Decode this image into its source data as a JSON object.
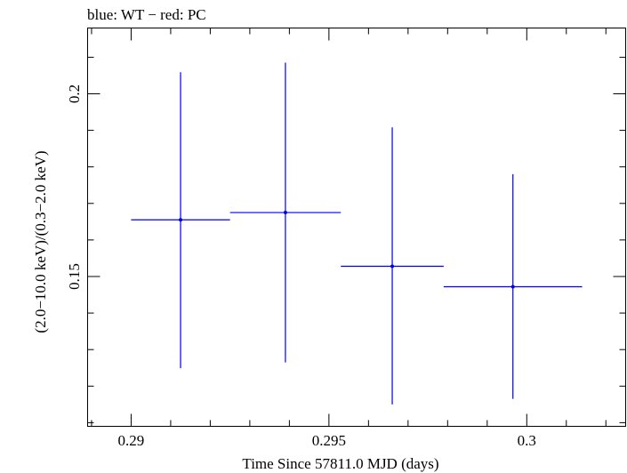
{
  "chart_data": {
    "type": "scatter",
    "title": "blue: WT − red: PC",
    "xlabel": "Time Since 57811.0 MJD (days)",
    "ylabel": "(2.0−10.0 keV)/(0.3−2.0 keV)",
    "xlim": [
      0.2889,
      0.3025
    ],
    "ylim": [
      0.109,
      0.218
    ],
    "x_ticks": [
      {
        "value": 0.29,
        "label": "0.29"
      },
      {
        "value": 0.295,
        "label": "0.295"
      },
      {
        "value": 0.3,
        "label": "0.3"
      }
    ],
    "y_ticks": [
      {
        "value": 0.15,
        "label": "0.15"
      },
      {
        "value": 0.2,
        "label": "0.2"
      }
    ],
    "x_minor_step": 0.001,
    "y_minor_step": 0.01,
    "grid": false,
    "series": [
      {
        "name": "WT",
        "color": "#0000ee",
        "points": [
          {
            "x": 0.29125,
            "xerr_low": 0.00125,
            "xerr_high": 0.00125,
            "y": 0.1655,
            "yerr_low": 0.0406,
            "yerr_high": 0.0404
          },
          {
            "x": 0.2939,
            "xerr_low": 0.0014,
            "xerr_high": 0.0014,
            "y": 0.1675,
            "yerr_low": 0.041,
            "yerr_high": 0.041
          },
          {
            "x": 0.2966,
            "xerr_low": 0.0013,
            "xerr_high": 0.0013,
            "y": 0.1528,
            "yerr_low": 0.0378,
            "yerr_high": 0.038
          },
          {
            "x": 0.29965,
            "xerr_low": 0.00175,
            "xerr_high": 0.00175,
            "y": 0.1472,
            "yerr_low": 0.0307,
            "yerr_high": 0.0308
          }
        ]
      },
      {
        "name": "PC",
        "color": "#ee0000",
        "points": []
      }
    ]
  }
}
